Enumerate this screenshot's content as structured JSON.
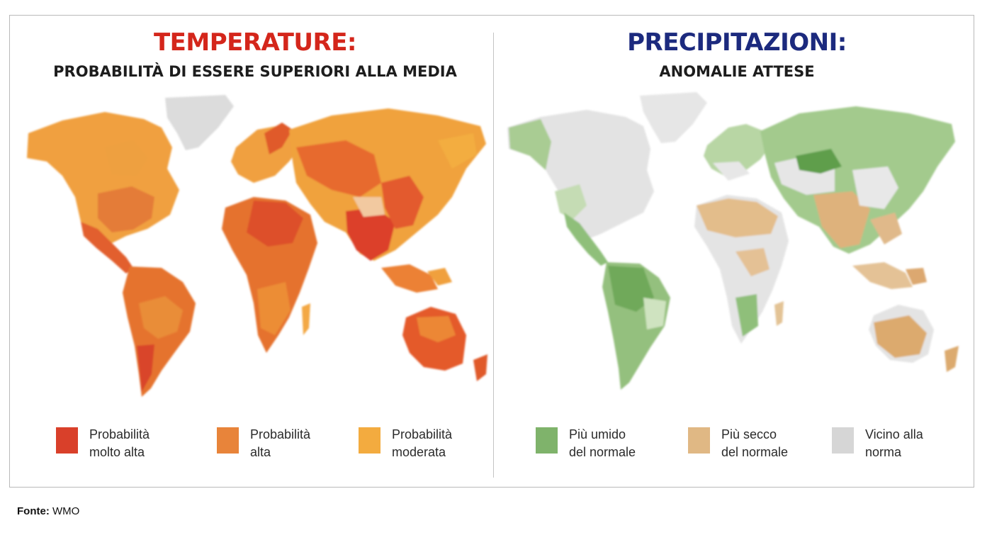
{
  "temperature": {
    "title": "TEMPERATURE:",
    "subtitle": "PROBABILITÀ DI ESSERE SUPERIORI ALLA MEDIA",
    "title_color": "#d4261b",
    "legend": [
      {
        "label": "Probabilità\nmolto alta",
        "color": "#d9402a"
      },
      {
        "label": "Probabilità\nalta",
        "color": "#e8843a"
      },
      {
        "label": "Probabilità\nmoderata",
        "color": "#f3ab3f"
      }
    ]
  },
  "precipitation": {
    "title": "PRECIPITAZIONI:",
    "subtitle": "ANOMALIE ATTESE",
    "title_color": "#1c2a7e",
    "legend": [
      {
        "label": "Più umido\ndel normale",
        "color": "#7fb36b"
      },
      {
        "label": "Più secco\ndel normale",
        "color": "#e0b884"
      },
      {
        "label": "Vicino alla\nnorma",
        "color": "#d6d6d6"
      }
    ]
  },
  "source": {
    "label": "Fonte:",
    "value": "WMO"
  },
  "icons": {
    "map_temperature": "world-map",
    "map_precipitation": "world-map"
  }
}
